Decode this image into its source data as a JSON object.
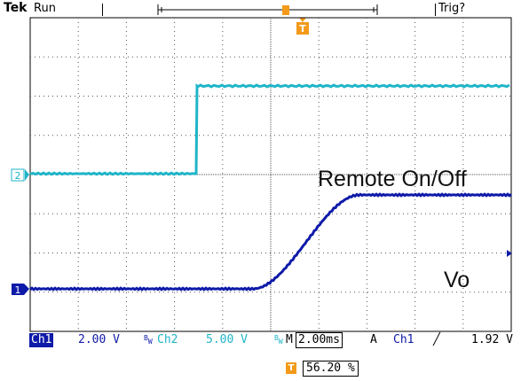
{
  "header": {
    "brand": "Tek",
    "run_state": "Run",
    "trigger_status": "Trig?"
  },
  "channels": [
    {
      "id": "1",
      "name": "Ch1",
      "scale": "2.00 V",
      "color": "#0e1aa8"
    },
    {
      "id": "2",
      "name": "Ch2",
      "scale": "5.00 V",
      "color": "#1fb5c8"
    }
  ],
  "markers": {
    "trigger_marker": "T",
    "ch1_marker": "1",
    "ch2_marker": "2"
  },
  "labels": {
    "remote": "Remote On/Off",
    "vo": "Vo"
  },
  "timebase": {
    "prefix": "M",
    "value": "2.00ms"
  },
  "trigger": {
    "mode": "A",
    "source": "Ch1",
    "slope_icon": "rising-edge-icon",
    "slope_glyph": "╱",
    "level": "1.92 V",
    "position_pct": "56.20 %"
  },
  "bandwidth_icon": "bw-limit-icon",
  "colors": {
    "ch1": "#0e1aa8",
    "ch2": "#1fb5c8",
    "trigger": "#f39a1a",
    "grid": "#888888"
  }
}
